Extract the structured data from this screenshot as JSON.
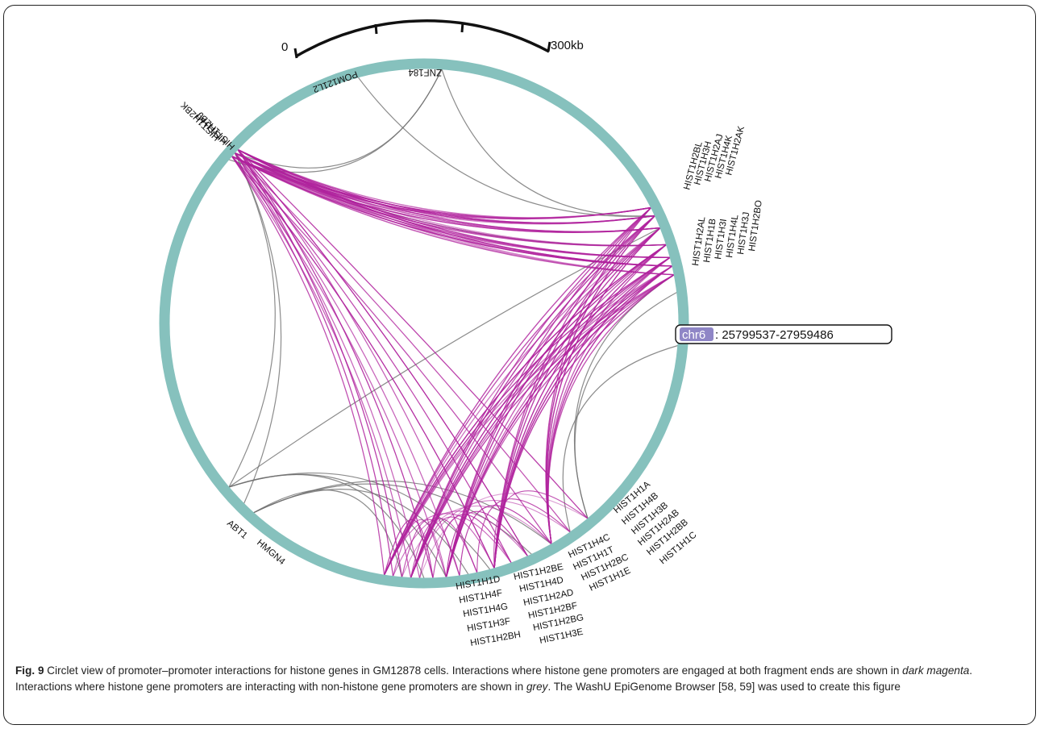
{
  "scale_bar": {
    "start_label": "0",
    "end_label": "300kb"
  },
  "coordinates": {
    "chrom": "chr6",
    "range": ": 25799537-27959486"
  },
  "colors": {
    "ring": "#86c1bd",
    "histone_link": "#b0229d",
    "other_link": "#6f6f6f",
    "chrom_badge": "#8f86c6"
  },
  "genes": {
    "znf184": "ZNF184",
    "pom121l2": "POM121L2",
    "hist1h2bk": "HIST1H2BK",
    "hist1h4i": "HIST1H4I",
    "hist1h2bj": "HIST1H2BJ",
    "hist1h2ak": "HIST1H2AK",
    "hist1h4k": "HIST1H4K",
    "hist1h2aj": "HIST1H2AJ",
    "hist1h3h": "HIST1H3H",
    "hist1h2bl": "HIST1H2BL",
    "hist1h2bo": "HIST1H2BO",
    "hist1h3j": "HIST1H3J",
    "hist1h4l": "HIST1H4L",
    "hist1h3i": "HIST1H3I",
    "hist1h1b": "HIST1H1B",
    "hist1h2al": "HIST1H2AL",
    "abt1": "ABT1",
    "hmgn4": "HMGN4",
    "hist1h1a": "HIST1H1A",
    "hist1h4b": "HIST1H4B",
    "hist1h3b": "HIST1H3B",
    "hist1h2ab": "HIST1H2AB",
    "hist1h2bb": "HIST1H2BB",
    "hist1h1c": "HIST1H1C",
    "hist1h4c": "HIST1H4C",
    "hist1h1t": "HIST1H1T",
    "hist1h2bc": "HIST1H2BC",
    "hist1h1e": "HIST1H1E",
    "hist1h2be": "HIST1H2BE",
    "hist1h4d": "HIST1H4D",
    "hist1h2ad": "HIST1H2AD",
    "hist1h2bf": "HIST1H2BF",
    "hist1h2bg": "HIST1H2BG",
    "hist1h3e": "HIST1H3E",
    "hist1h1d": "HIST1H1D",
    "hist1h4f": "HIST1H4F",
    "hist1h4g": "HIST1H4G",
    "hist1h3f": "HIST1H3F",
    "hist1h2bh": "HIST1H2BH"
  },
  "caption": {
    "figno": "Fig. 9",
    "part1": " Circlet view of promoter–promoter interactions for histone genes in GM12878 cells. Interactions where histone gene promoters are engaged at both fragment ends are shown in ",
    "magenta_term": "dark magenta",
    "part2": ". Interactions where histone gene promoters are interacting with non-histone gene promoters are shown in ",
    "grey_term": "grey",
    "part3": ". The WashU EpiGenome Browser [58, 59] was used to create this figure"
  }
}
